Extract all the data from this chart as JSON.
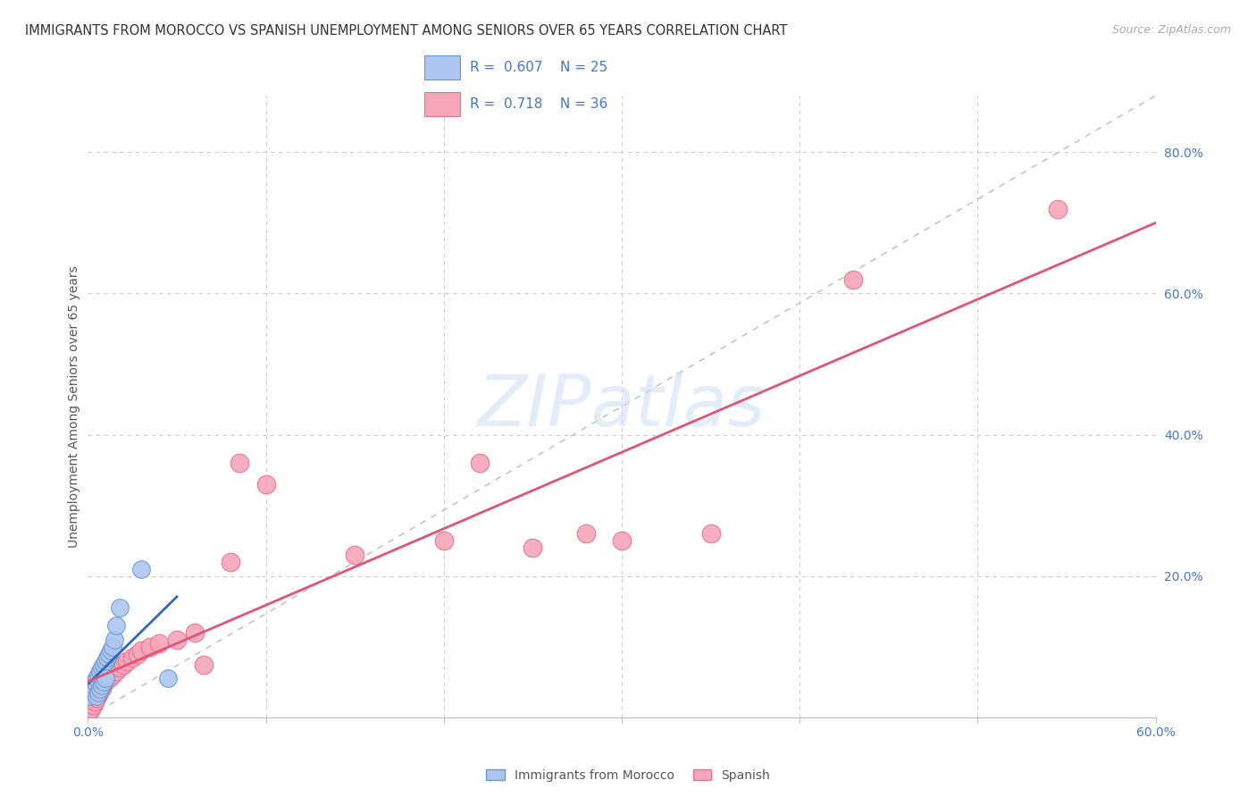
{
  "title": "IMMIGRANTS FROM MOROCCO VS SPANISH UNEMPLOYMENT AMONG SENIORS OVER 65 YEARS CORRELATION CHART",
  "source": "Source: ZipAtlas.com",
  "ylabel": "Unemployment Among Seniors over 65 years",
  "xlim": [
    0.0,
    0.6
  ],
  "ylim": [
    0.0,
    0.88
  ],
  "morocco_color": "#aec6f0",
  "spanish_color": "#f4a7b9",
  "morocco_edge": "#6699cc",
  "spanish_edge": "#e87090",
  "regression_morocco_color": "#3366bb",
  "regression_spanish_color": "#e05575",
  "legend_r_morocco": "R = 0.607",
  "legend_n_morocco": "N = 25",
  "legend_r_spanish": "R = 0.718",
  "legend_n_spanish": "N = 36",
  "watermark": "ZIPatlas",
  "background_color": "#ffffff",
  "morocco_x": [
    0.001,
    0.002,
    0.003,
    0.004,
    0.005,
    0.005,
    0.006,
    0.007,
    0.007,
    0.008,
    0.008,
    0.009,
    0.009,
    0.01,
    0.01,
    0.011,
    0.012,
    0.013,
    0.014,
    0.015,
    0.016,
    0.018,
    0.02,
    0.03,
    0.04
  ],
  "morocco_y": [
    0.005,
    0.01,
    0.015,
    0.02,
    0.025,
    0.03,
    0.035,
    0.04,
    0.045,
    0.05,
    0.055,
    0.06,
    0.065,
    0.07,
    0.075,
    0.08,
    0.085,
    0.09,
    0.095,
    0.1,
    0.13,
    0.155,
    0.21,
    0.05,
    0.06
  ],
  "spanish_x": [
    0.001,
    0.002,
    0.003,
    0.004,
    0.005,
    0.006,
    0.007,
    0.008,
    0.009,
    0.01,
    0.012,
    0.014,
    0.015,
    0.016,
    0.017,
    0.018,
    0.02,
    0.022,
    0.025,
    0.028,
    0.03,
    0.035,
    0.04,
    0.045,
    0.055,
    0.06,
    0.065,
    0.08,
    0.09,
    0.1,
    0.15,
    0.2,
    0.25,
    0.3,
    0.43,
    0.54
  ],
  "spanish_y": [
    0.01,
    0.015,
    0.02,
    0.025,
    0.03,
    0.035,
    0.04,
    0.045,
    0.05,
    0.055,
    0.06,
    0.065,
    0.07,
    0.075,
    0.08,
    0.085,
    0.09,
    0.095,
    0.1,
    0.105,
    0.11,
    0.115,
    0.12,
    0.125,
    0.13,
    0.135,
    0.08,
    0.22,
    0.35,
    0.315,
    0.22,
    0.24,
    0.26,
    0.245,
    0.62,
    0.72
  ]
}
